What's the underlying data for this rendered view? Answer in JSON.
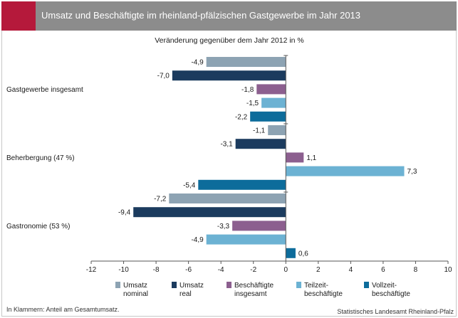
{
  "header": {
    "title": "Umsatz und Beschäftigte im rheinland-pfälzischen Gastgewerbe im Jahr 2013"
  },
  "colors": {
    "header_bg": "#8c8c8c",
    "accent": "#b5193b",
    "umsatz_nominal": "#8da3b3",
    "umsatz_real": "#1b3b5e",
    "beschaeftigte": "#8c5f8f",
    "teilzeit": "#6cb2d3",
    "vollzeit": "#0d6c9b"
  },
  "chart_data": {
    "type": "bar",
    "orientation": "horizontal",
    "subtitle": "Veränderung gegenüber dem Jahr 2012 in %",
    "categories": [
      "Gastgewerbe insgesamt",
      "Beherbergung (47 %)",
      "Gastronomie (53 %)"
    ],
    "series": [
      {
        "name": "Umsatz\nnominal",
        "color_key": "umsatz_nominal",
        "values": [
          -4.9,
          -1.1,
          -7.2
        ],
        "labels": [
          "-4,9",
          "-1,1",
          "-7,2"
        ]
      },
      {
        "name": "Umsatz\nreal",
        "color_key": "umsatz_real",
        "values": [
          -7.0,
          -3.1,
          -9.4
        ],
        "labels": [
          "-7,0",
          "-3,1",
          "-9,4"
        ]
      },
      {
        "name": "Beschäftigte\ninsgesamt",
        "color_key": "beschaeftigte",
        "values": [
          -1.8,
          1.1,
          -3.3
        ],
        "labels": [
          "-1,8",
          "1,1",
          "-3,3"
        ]
      },
      {
        "name": "Teilzeit-\nbeschäftigte",
        "color_key": "teilzeit",
        "values": [
          -1.5,
          7.3,
          -4.9
        ],
        "labels": [
          "-1,5",
          "7,3",
          "-4,9"
        ]
      },
      {
        "name": "Vollzeit-\nbeschäftigte",
        "color_key": "vollzeit",
        "values": [
          -2.2,
          -5.4,
          0.6
        ],
        "labels": [
          "-2,2",
          "-5,4",
          "0,6"
        ]
      }
    ],
    "xlim": [
      -12,
      10
    ],
    "xticks": [
      -12,
      -10,
      -8,
      -6,
      -4,
      -2,
      0,
      2,
      4,
      6,
      8,
      10
    ],
    "grid": false,
    "legend_position": "bottom"
  },
  "footnote": "In Klammern: Anteil am Gesamtumsatz.",
  "source": "Statistisches Landesamt Rheinland-Pfalz"
}
